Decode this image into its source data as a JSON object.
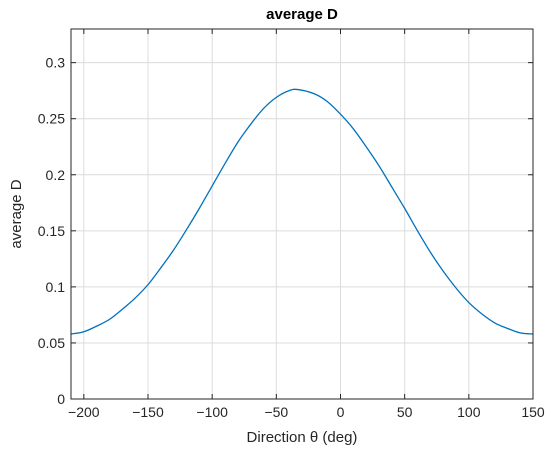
{
  "chart_data": {
    "type": "line",
    "title": "average D",
    "xlabel": "Direction θ (deg)",
    "ylabel": "average D",
    "xlim": [
      -210,
      150
    ],
    "ylim": [
      0,
      0.33
    ],
    "grid": true,
    "xticks": [
      -200,
      -150,
      -100,
      -50,
      0,
      50,
      100,
      150
    ],
    "xtick_labels": [
      "−200",
      "−150",
      "−100",
      "−50",
      "0",
      "50",
      "100",
      "150"
    ],
    "yticks": [
      0,
      0.05,
      0.1,
      0.15,
      0.2,
      0.25,
      0.3
    ],
    "ytick_labels": [
      "0",
      "0.05",
      "0.1",
      "0.15",
      "0.2",
      "0.25",
      "0.3"
    ],
    "colors": {
      "line": "#0072bd"
    },
    "series": [
      {
        "x": [
          -210,
          -200,
          -190,
          -180,
          -170,
          -160,
          -150,
          -140,
          -130,
          -120,
          -110,
          -100,
          -90,
          -80,
          -70,
          -60,
          -50,
          -40,
          -33,
          -20,
          -10,
          0,
          10,
          20,
          30,
          40,
          50,
          60,
          70,
          80,
          90,
          100,
          110,
          120,
          130,
          140,
          150
        ],
        "y": [
          0.058,
          0.06,
          0.065,
          0.071,
          0.08,
          0.09,
          0.102,
          0.117,
          0.133,
          0.151,
          0.17,
          0.19,
          0.21,
          0.229,
          0.245,
          0.259,
          0.269,
          0.275,
          0.276,
          0.272,
          0.265,
          0.254,
          0.241,
          0.225,
          0.208,
          0.189,
          0.17,
          0.15,
          0.131,
          0.114,
          0.099,
          0.086,
          0.076,
          0.068,
          0.063,
          0.059,
          0.058
        ]
      }
    ]
  }
}
